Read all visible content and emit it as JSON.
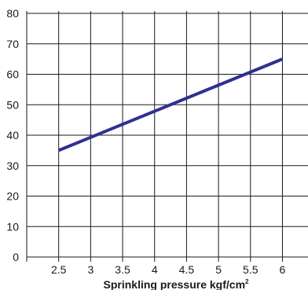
{
  "chart_data": {
    "type": "line",
    "title": "",
    "xlabel": "Sprinkling pressure kgf/cm",
    "xlabel_superscript": "2",
    "ylabel": "",
    "x_ticks": [
      "2.5",
      "3",
      "3.5",
      "4",
      "4.5",
      "5",
      "5.5",
      "6"
    ],
    "y_ticks": [
      "0",
      "10",
      "20",
      "30",
      "40",
      "50",
      "60",
      "70",
      "80"
    ],
    "xlim": [
      2.0,
      6.4
    ],
    "ylim": [
      0,
      80
    ],
    "grid": true,
    "series": [
      {
        "x": [
          2.5,
          6.0
        ],
        "y": [
          35,
          65
        ],
        "color": "#2e3191"
      }
    ]
  }
}
